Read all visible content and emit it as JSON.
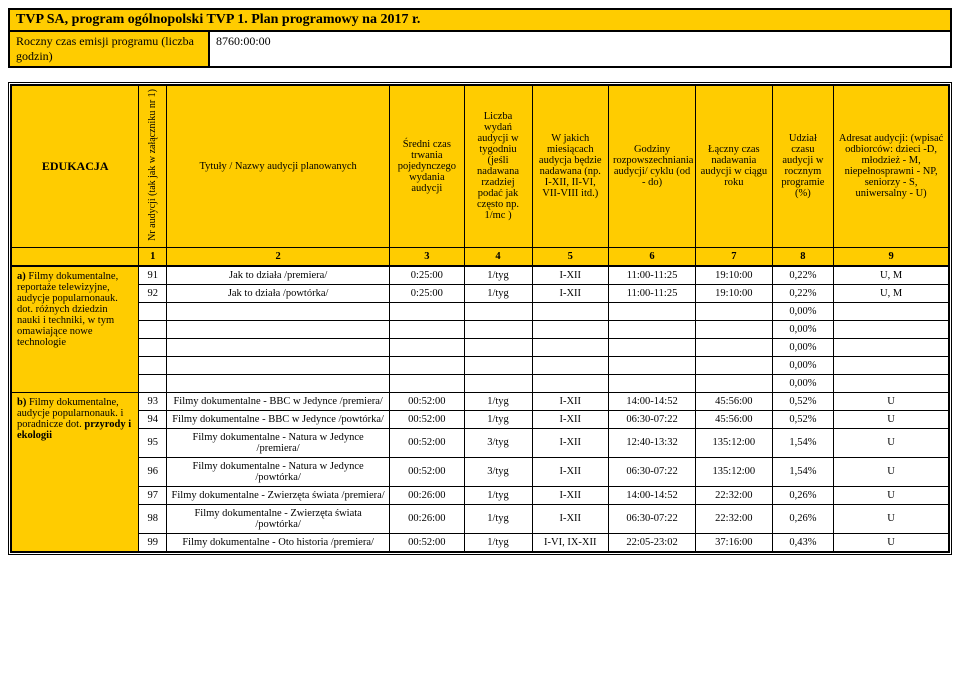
{
  "header": {
    "title": "TVP SA, program ogólnopolski TVP 1. Plan programowy na 2017 r.",
    "sub_left": "Roczny czas emisji programu (liczba godzin)",
    "sub_right": "8760:00:00"
  },
  "section_label": "EDUKACJA",
  "columns": {
    "c1": "Nr audycji (tak jak w załączniku nr 1)",
    "c2": "Tytuły / Nazwy audycji planowanych",
    "c3": "Średni czas trwania pojedynczego wydania audycji",
    "c4": "Liczba wydań audycji w tygodniu (jeśli nadawana rzadziej podać jak często np. 1/mc )",
    "c5": "W jakich miesiącach audycja będzie nadawana (np. I-XII, II-VI, VII-VIII itd.)",
    "c6": "Godziny rozpowszechniania audycji/ cyklu (od - do)",
    "c7": "Łączny czas nadawania audycji w ciągu roku",
    "c8": "Udział czasu audycji w rocznym programie (%)",
    "c9": "Adresat audycji: (wpisać odbiorców: dzieci -D, młodzież - M, niepełnosprawni - NP, seniorzy - S, uniwersalny - U)"
  },
  "numrow": [
    "1",
    "2",
    "3",
    "4",
    "5",
    "6",
    "7",
    "8",
    "9"
  ],
  "cat_a": "a) Filmy dokumentalne, reportaże telewizyjne, audycje popularnonauk. dot. różnych dziedzin nauki i techniki, w tym omawiające nowe technologie",
  "cat_b": "b) Filmy dokumentalne, audycje popularnonauk. i poradnicze dot. przyrody i ekologii",
  "rows": [
    {
      "nr": "91",
      "title": "Jak to działa /premiera/",
      "avg": "0:25:00",
      "freq": "1/tyg",
      "months": "I-XII",
      "hours": "11:00-11:25",
      "total": "19:10:00",
      "pct": "0,22%",
      "aud": "U, M"
    },
    {
      "nr": "92",
      "title": "Jak to działa /powtórka/",
      "avg": "0:25:00",
      "freq": "1/tyg",
      "months": "I-XII",
      "hours": "11:00-11:25",
      "total": "19:10:00",
      "pct": "0,22%",
      "aud": "U, M"
    },
    {
      "nr": "",
      "title": "",
      "avg": "",
      "freq": "",
      "months": "",
      "hours": "",
      "total": "",
      "pct": "0,00%",
      "aud": ""
    },
    {
      "nr": "",
      "title": "",
      "avg": "",
      "freq": "",
      "months": "",
      "hours": "",
      "total": "",
      "pct": "0,00%",
      "aud": ""
    },
    {
      "nr": "",
      "title": "",
      "avg": "",
      "freq": "",
      "months": "",
      "hours": "",
      "total": "",
      "pct": "0,00%",
      "aud": ""
    },
    {
      "nr": "",
      "title": "",
      "avg": "",
      "freq": "",
      "months": "",
      "hours": "",
      "total": "",
      "pct": "0,00%",
      "aud": ""
    },
    {
      "nr": "",
      "title": "",
      "avg": "",
      "freq": "",
      "months": "",
      "hours": "",
      "total": "",
      "pct": "0,00%",
      "aud": ""
    },
    {
      "nr": "93",
      "title": "Filmy dokumentalne - BBC w Jedynce /premiera/",
      "avg": "00:52:00",
      "freq": "1/tyg",
      "months": "I-XII",
      "hours": "14:00-14:52",
      "total": "45:56:00",
      "pct": "0,52%",
      "aud": "U"
    },
    {
      "nr": "94",
      "title": "Filmy dokumentalne - BBC w Jedynce /powtórka/",
      "avg": "00:52:00",
      "freq": "1/tyg",
      "months": "I-XII",
      "hours": "06:30-07:22",
      "total": "45:56:00",
      "pct": "0,52%",
      "aud": "U"
    },
    {
      "nr": "95",
      "title": "Filmy dokumentalne - Natura w Jedynce /premiera/",
      "avg": "00:52:00",
      "freq": "3/tyg",
      "months": "I-XII",
      "hours": "12:40-13:32",
      "total": "135:12:00",
      "pct": "1,54%",
      "aud": "U"
    },
    {
      "nr": "96",
      "title": "Filmy dokumentalne - Natura w Jedynce /powtórka/",
      "avg": "00:52:00",
      "freq": "3/tyg",
      "months": "I-XII",
      "hours": "06:30-07:22",
      "total": "135:12:00",
      "pct": "1,54%",
      "aud": "U"
    },
    {
      "nr": "97",
      "title": "Filmy dokumentalne - Zwierzęta świata /premiera/",
      "avg": "00:26:00",
      "freq": "1/tyg",
      "months": "I-XII",
      "hours": "14:00-14:52",
      "total": "22:32:00",
      "pct": "0,26%",
      "aud": "U"
    },
    {
      "nr": "98",
      "title": "Filmy dokumentalne - Zwierzęta świata /powtórka/",
      "avg": "00:26:00",
      "freq": "1/tyg",
      "months": "I-XII",
      "hours": "06:30-07:22",
      "total": "22:32:00",
      "pct": "0,26%",
      "aud": "U"
    },
    {
      "nr": "99",
      "title": "Filmy dokumentalne - Oto historia /premiera/",
      "avg": "00:52:00",
      "freq": "1/tyg",
      "months": "I-VI, IX-XII",
      "hours": "22:05-23:02",
      "total": "37:16:00",
      "pct": "0,43%",
      "aud": "U"
    }
  ]
}
